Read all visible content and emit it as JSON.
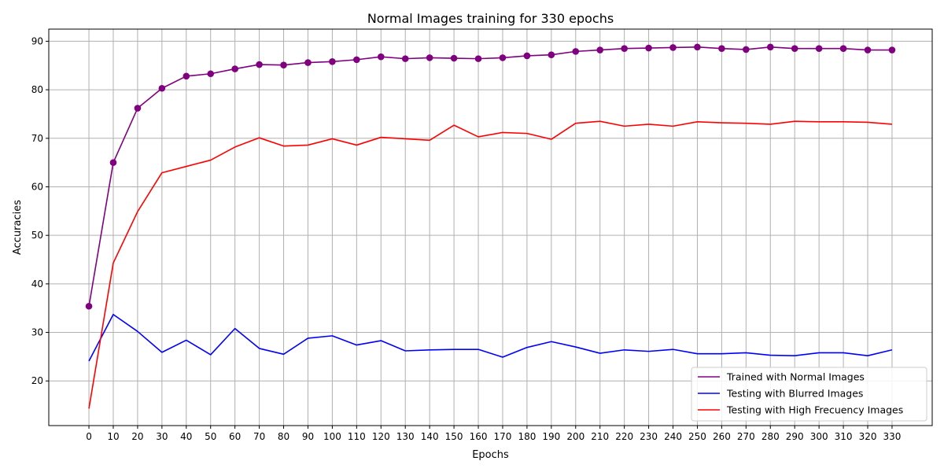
{
  "chart_data": {
    "type": "line",
    "title": "Normal Images training for 330 epochs",
    "xlabel": "Epochs",
    "ylabel": "Accuracies",
    "x": [
      0,
      10,
      20,
      30,
      40,
      50,
      60,
      70,
      80,
      90,
      100,
      110,
      120,
      130,
      140,
      150,
      160,
      170,
      180,
      190,
      200,
      210,
      220,
      230,
      240,
      250,
      260,
      270,
      280,
      290,
      300,
      310,
      320,
      330
    ],
    "xlim": [
      -16.5,
      346.5
    ],
    "ylim": [
      10.8,
      92.5
    ],
    "yticks": [
      20,
      30,
      40,
      50,
      60,
      70,
      80,
      90
    ],
    "grid": true,
    "legend_position": "lower-right",
    "series": [
      {
        "name": "Trained with Normal Images",
        "color": "#800080",
        "markers": true,
        "values": [
          35.4,
          65.0,
          76.2,
          80.3,
          82.8,
          83.3,
          84.3,
          85.2,
          85.1,
          85.6,
          85.8,
          86.2,
          86.8,
          86.4,
          86.6,
          86.5,
          86.4,
          86.6,
          87.0,
          87.2,
          87.9,
          88.2,
          88.5,
          88.6,
          88.7,
          88.8,
          88.5,
          88.3,
          88.8,
          88.5,
          88.5,
          88.5,
          88.2,
          88.2
        ]
      },
      {
        "name": "Testing with Blurred Images",
        "color": "#0000ff",
        "markers": false,
        "values": [
          24.1,
          33.7,
          30.2,
          25.9,
          28.4,
          25.4,
          30.8,
          26.7,
          25.5,
          28.8,
          29.3,
          27.4,
          28.3,
          26.2,
          26.4,
          26.5,
          26.5,
          24.9,
          26.9,
          28.1,
          27.0,
          25.7,
          26.4,
          26.1,
          26.5,
          25.6,
          25.6,
          25.8,
          25.3,
          25.2,
          25.8,
          25.8,
          25.2,
          26.4
        ]
      },
      {
        "name": "Testing with High Frecuency Images",
        "color": "#ff0000",
        "markers": false,
        "values": [
          14.3,
          44.3,
          54.9,
          62.9,
          64.2,
          65.5,
          68.2,
          70.1,
          68.4,
          68.6,
          69.9,
          68.6,
          70.2,
          69.9,
          69.6,
          72.7,
          70.3,
          71.2,
          71.0,
          69.8,
          73.1,
          73.5,
          72.5,
          72.9,
          72.5,
          73.4,
          73.2,
          73.1,
          72.9,
          73.5,
          73.4,
          73.4,
          73.3,
          72.9
        ]
      }
    ]
  }
}
